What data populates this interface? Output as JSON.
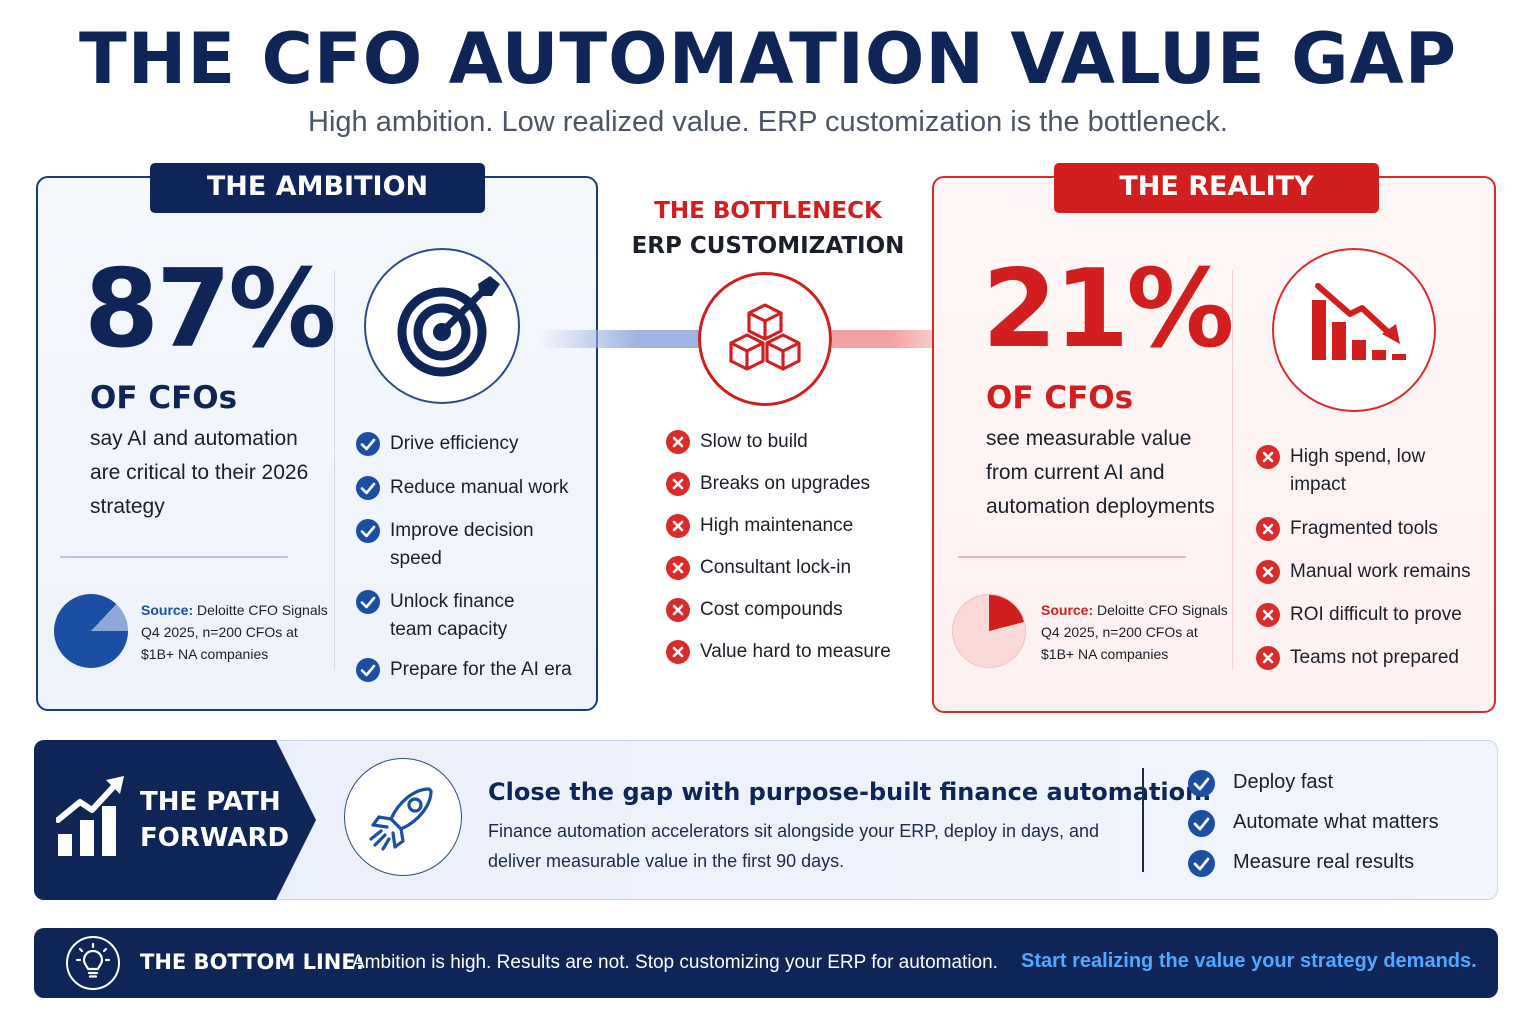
{
  "header": {
    "title": "THE CFO AUTOMATION VALUE GAP",
    "subtitle": "High ambition. Low realized value. ERP customization is the bottleneck."
  },
  "ambition": {
    "tag": "THE AMBITION",
    "stat": "87%",
    "stat_unit": "OF CFOs",
    "description": "say AI and automation are critical to their 2026 strategy",
    "source_label": "Source:",
    "source_text": "Deloitte CFO Signals Q4 2025, n=200 CFOs at $1B+ NA companies",
    "pie_value": 0.87,
    "items": [
      {
        "label": "Drive efficiency"
      },
      {
        "label": "Reduce manual work"
      },
      {
        "label": "Improve decision speed"
      },
      {
        "label": "Unlock finance team capacity"
      },
      {
        "label": "Prepare for the AI era"
      }
    ]
  },
  "bottleneck": {
    "title": "THE BOTTLENECK",
    "subtitle": "ERP CUSTOMIZATION",
    "items": [
      {
        "label": "Slow to build"
      },
      {
        "label": "Breaks on upgrades"
      },
      {
        "label": "High maintenance"
      },
      {
        "label": "Consultant lock-in"
      },
      {
        "label": "Cost compounds"
      },
      {
        "label": "Value hard to measure"
      }
    ]
  },
  "reality": {
    "tag": "THE REALITY",
    "stat": "21%",
    "stat_unit": "OF CFOs",
    "description": "see measurable value from current AI and automation deployments",
    "source_label": "Source:",
    "source_text": "Deloitte CFO Signals Q4 2025, n=200 CFOs at $1B+ NA companies",
    "pie_value": 0.21,
    "items": [
      {
        "label": "High spend, low impact"
      },
      {
        "label": "Fragmented tools"
      },
      {
        "label": "Manual work remains"
      },
      {
        "label": "ROI difficult to prove"
      },
      {
        "label": "Teams not prepared"
      }
    ]
  },
  "path": {
    "label_line1": "THE PATH",
    "label_line2": "FORWARD",
    "heading": "Close the gap with purpose-built finance automation.",
    "body": "Finance automation accelerators sit alongside your ERP, deploy in days, and deliver measurable value in the first 90 days.",
    "items": [
      {
        "label": "Deploy fast"
      },
      {
        "label": "Automate what matters"
      },
      {
        "label": "Measure real results"
      }
    ]
  },
  "bottom": {
    "label": "THE BOTTOM LINE:",
    "text": "Ambition is high. Results are not. Stop customizing your ERP for automation.",
    "link": "Start realizing the value your strategy demands."
  },
  "colors": {
    "navy": "#0f2557",
    "blue": "#1a4fa3",
    "red": "#d11f1f",
    "link_blue": "#52a8ff"
  },
  "icons": {
    "ambition": "target-icon",
    "bottleneck": "cubes-icon",
    "reality": "declining-chart-icon",
    "path": "growth-chart-icon",
    "path_feature": "rocket-icon",
    "bottom": "lightbulb-icon"
  }
}
